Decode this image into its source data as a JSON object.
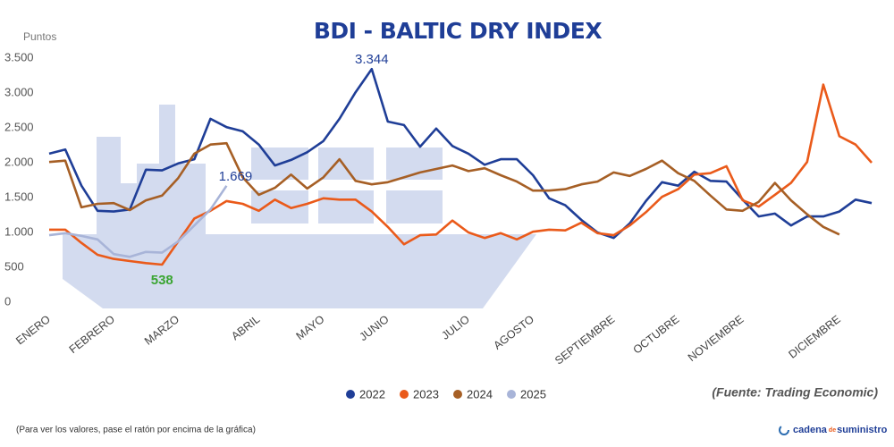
{
  "chart_data": {
    "type": "line",
    "title": "BDI - BALTIC DRY INDEX",
    "y_label": "Puntos",
    "source": "(Fuente: Trading Economic)",
    "footnote": "(Para ver los valores, pase el ratón por encima de la gráfica)",
    "logo": {
      "first": "cadena",
      "small": "de",
      "last": "suministro"
    },
    "categories": [
      "ENERO",
      null,
      null,
      null,
      "FEBRERO",
      null,
      null,
      null,
      "MARZO",
      null,
      null,
      null,
      null,
      "ABRIL",
      null,
      null,
      null,
      "MAYO",
      null,
      null,
      null,
      "JUNIO",
      null,
      null,
      null,
      null,
      "JULIO",
      null,
      null,
      null,
      "AGOSTO",
      null,
      null,
      null,
      null,
      "SEPTIEMBRE",
      null,
      null,
      null,
      "OCTUBRE",
      null,
      null,
      null,
      "NOVIEMBRE",
      null,
      null,
      null,
      null,
      null,
      "DICIEMBRE",
      null,
      null
    ],
    "series": [
      {
        "name": "2022",
        "color": "#1f3e97",
        "value_label_color": "#1f3e97",
        "values": [
          2130,
          2190,
          1670,
          1310,
          1300,
          1330,
          1900,
          1890,
          1990,
          2050,
          2630,
          2510,
          2450,
          2260,
          1960,
          2040,
          2150,
          2310,
          2630,
          3010,
          3344,
          2590,
          2540,
          2230,
          2490,
          2240,
          2130,
          1970,
          2050,
          2050,
          1820,
          1490,
          1390,
          1180,
          1000,
          920,
          1130,
          1450,
          1720,
          1670,
          1870,
          1740,
          1730,
          1470,
          1230,
          1270,
          1100,
          1230,
          1230,
          1300,
          1470,
          1420
        ],
        "value_labels": [
          null,
          null,
          null,
          null,
          null,
          null,
          null,
          null,
          null,
          null,
          null,
          null,
          null,
          null,
          null,
          null,
          null,
          null,
          null,
          null,
          "3.344",
          null,
          null,
          null,
          null,
          null,
          null,
          null,
          null,
          null,
          null,
          null,
          null,
          null,
          null,
          null,
          null,
          null,
          null,
          null,
          null,
          null,
          null,
          null,
          null,
          null,
          null,
          null,
          null,
          null,
          null,
          null
        ]
      },
      {
        "name": "2023",
        "color": "#ea5a1a",
        "value_label_color": "#3aa532",
        "values": [
          1040,
          1040,
          850,
          680,
          620,
          590,
          560,
          538,
          870,
          1200,
          1310,
          1450,
          1410,
          1310,
          1470,
          1350,
          1410,
          1490,
          1470,
          1470,
          1300,
          1080,
          830,
          960,
          970,
          1170,
          1000,
          920,
          990,
          900,
          1010,
          1040,
          1030,
          1140,
          990,
          960,
          1100,
          1290,
          1510,
          1620,
          1830,
          1850,
          1950,
          1460,
          1370,
          1540,
          1710,
          2010,
          3120,
          2380,
          2260,
          2000
        ],
        "value_labels": [
          null,
          null,
          null,
          null,
          null,
          null,
          null,
          "538",
          null,
          null,
          null,
          null,
          null,
          null,
          null,
          null,
          null,
          null,
          null,
          null,
          null,
          null,
          null,
          null,
          null,
          null,
          null,
          null,
          null,
          null,
          null,
          null,
          null,
          null,
          null,
          null,
          null,
          null,
          null,
          null,
          null,
          null,
          null,
          null,
          null,
          null,
          null,
          null,
          null,
          null,
          null,
          null
        ]
      },
      {
        "name": "2024",
        "color": "#a65f25",
        "values": [
          2010,
          2030,
          1360,
          1410,
          1420,
          1320,
          1460,
          1530,
          1780,
          2130,
          2260,
          2280,
          1790,
          1540,
          1640,
          1830,
          1630,
          1790,
          2050,
          1740,
          1690,
          1720,
          1790,
          1860,
          1910,
          1960,
          1880,
          1920,
          1820,
          1730,
          1600,
          1600,
          1620,
          1690,
          1730,
          1860,
          1810,
          1910,
          2030,
          1850,
          1740,
          1530,
          1330,
          1310,
          1440,
          1710,
          1460,
          1260,
          1080,
          970,
          null,
          null
        ]
      },
      {
        "name": "2025",
        "color": "#a8b4d8",
        "value_label_color": "#1f3e97",
        "values": [
          960,
          990,
          950,
          900,
          690,
          650,
          720,
          710,
          870,
          1100,
          1330,
          1669,
          null,
          null,
          null,
          null,
          null,
          null,
          null,
          null,
          null,
          null,
          null,
          null,
          null,
          null,
          null,
          null,
          null,
          null,
          null,
          null,
          null,
          null,
          null,
          null,
          null,
          null,
          null,
          null,
          null,
          null,
          null,
          null,
          null,
          null,
          null,
          null,
          null,
          null,
          null,
          null
        ],
        "value_labels": [
          null,
          null,
          null,
          null,
          null,
          null,
          null,
          null,
          null,
          null,
          null,
          "1.669",
          null,
          null,
          null,
          null,
          null,
          null,
          null,
          null,
          null,
          null,
          null,
          null,
          null,
          null,
          null,
          null,
          null,
          null,
          null,
          null,
          null,
          null,
          null,
          null,
          null,
          null,
          null,
          null,
          null,
          null,
          null,
          null,
          null,
          null,
          null,
          null,
          null,
          null,
          null,
          null
        ]
      }
    ],
    "ylim": [
      0,
      3500
    ],
    "yticks": [
      0,
      500,
      {
        "value": 1000,
        "label": "1.000"
      },
      {
        "value": 1500,
        "label": "1.500"
      },
      {
        "value": 2000,
        "label": "2.000"
      },
      {
        "value": 2500,
        "label": "2.500"
      },
      {
        "value": 3000,
        "label": "3.000"
      },
      {
        "value": 3500,
        "label": "3.500"
      }
    ],
    "grid": false,
    "legend": "bottom"
  }
}
